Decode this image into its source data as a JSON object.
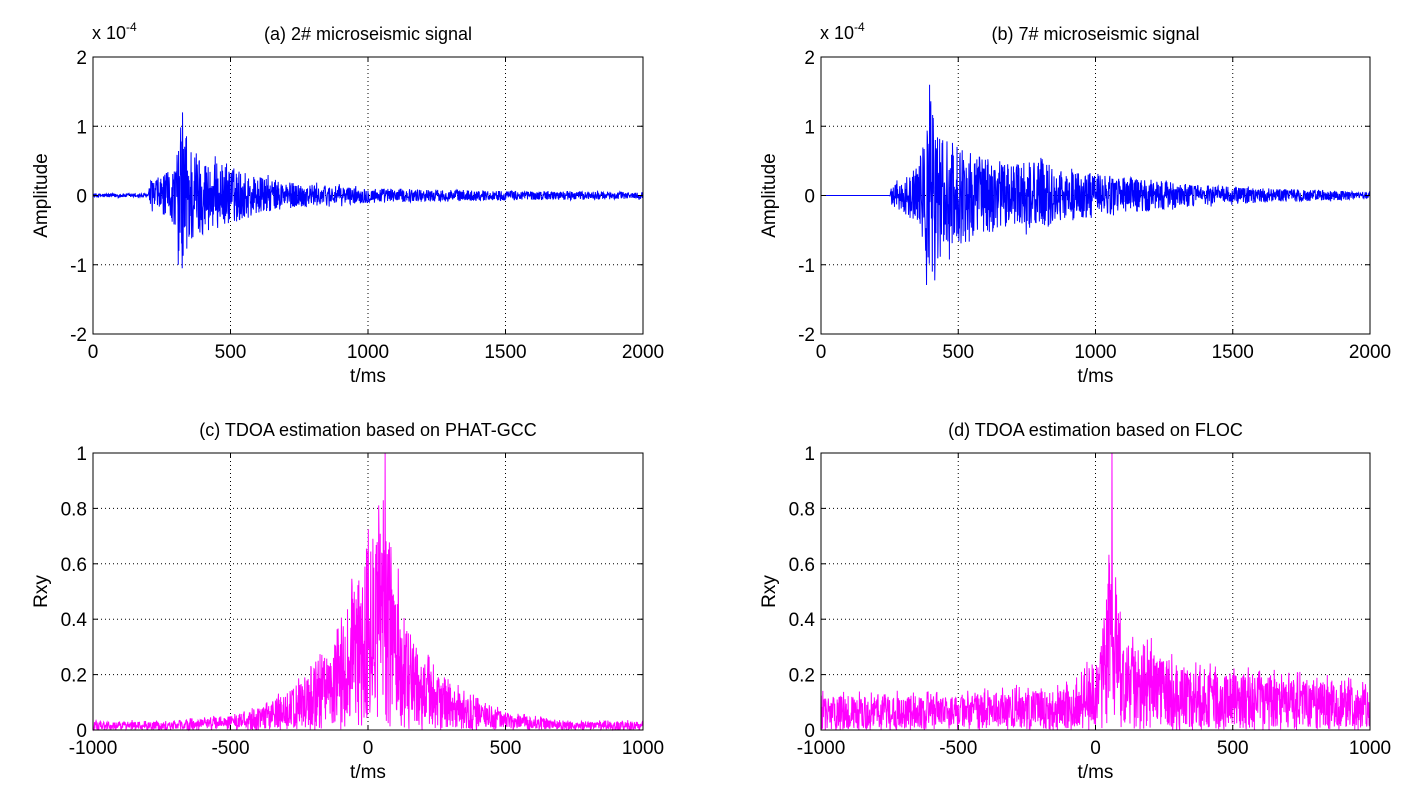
{
  "chart_data": [
    {
      "id": "a",
      "type": "line",
      "title": "(a) 2# microseismic signal",
      "xlabel": "t/ms",
      "ylabel": "Amplitude",
      "axis_exponent": {
        "base": "x 10",
        "exp": "-4"
      },
      "xlim": [
        0,
        2000
      ],
      "ylim": [
        -2,
        2
      ],
      "xticks": [
        0,
        500,
        1000,
        1500,
        2000
      ],
      "yticks": [
        -2,
        -1,
        0,
        1,
        2
      ],
      "grid": true,
      "color": "#0000ff",
      "envelope": {
        "x": [
          0,
          200,
          210,
          260,
          300,
          325,
          350,
          400,
          450,
          500,
          600,
          700,
          800,
          1000,
          1200,
          1500,
          1800,
          2000
        ],
        "y": [
          0.03,
          0.03,
          0.22,
          0.3,
          0.45,
          1.2,
          0.8,
          0.55,
          0.48,
          0.42,
          0.28,
          0.2,
          0.16,
          0.11,
          0.09,
          0.07,
          0.06,
          0.05
        ]
      },
      "peak": {
        "x": 325,
        "y": 1.2
      },
      "trough": {
        "x": 310,
        "y": -1.0
      }
    },
    {
      "id": "b",
      "type": "line",
      "title": "(b) 7# microseismic signal",
      "xlabel": "t/ms",
      "ylabel": "Amplitude",
      "axis_exponent": {
        "base": "x 10",
        "exp": "-4"
      },
      "xlim": [
        0,
        2000
      ],
      "ylim": [
        -2,
        2
      ],
      "xticks": [
        0,
        500,
        1000,
        1500,
        2000
      ],
      "yticks": [
        -2,
        -1,
        0,
        1,
        2
      ],
      "grid": true,
      "color": "#0000ff",
      "envelope": {
        "x": [
          0,
          250,
          255,
          300,
          350,
          380,
          395,
          420,
          450,
          500,
          550,
          600,
          700,
          800,
          900,
          1000,
          1100,
          1300,
          1500,
          1800,
          2000
        ],
        "y": [
          0.0,
          0.0,
          0.15,
          0.25,
          0.4,
          0.9,
          1.5,
          1.0,
          0.8,
          0.75,
          0.7,
          0.55,
          0.45,
          0.5,
          0.35,
          0.32,
          0.28,
          0.18,
          0.12,
          0.08,
          0.05
        ]
      },
      "peak": {
        "x": 395,
        "y": 1.6
      },
      "trough": {
        "x": 405,
        "y": -1.1
      }
    },
    {
      "id": "c",
      "type": "line",
      "title": "(c) TDOA estimation based on PHAT-GCC",
      "xlabel": "t/ms",
      "ylabel": "Rxy",
      "xlim": [
        -1000,
        1000
      ],
      "ylim": [
        0,
        1
      ],
      "xticks": [
        -1000,
        -500,
        0,
        500,
        1000
      ],
      "yticks": [
        0,
        0.2,
        0.4,
        0.6,
        0.8,
        1
      ],
      "grid": true,
      "color": "#ff00ff",
      "envelope": {
        "x": [
          -1000,
          -700,
          -500,
          -400,
          -300,
          -200,
          -100,
          0,
          50,
          100,
          150,
          200,
          300,
          400,
          500,
          700,
          1000
        ],
        "y": [
          0.03,
          0.03,
          0.05,
          0.08,
          0.13,
          0.2,
          0.35,
          0.7,
          0.75,
          0.55,
          0.35,
          0.25,
          0.15,
          0.1,
          0.06,
          0.03,
          0.03
        ]
      },
      "peak": {
        "x": 62,
        "y": 1.0
      }
    },
    {
      "id": "d",
      "type": "line",
      "title": "(d) TDOA estimation based on FLOC",
      "xlabel": "t/ms",
      "ylabel": "Rxy",
      "xlim": [
        -1000,
        1000
      ],
      "ylim": [
        0,
        1
      ],
      "xticks": [
        -1000,
        -500,
        0,
        500,
        1000
      ],
      "yticks": [
        0,
        0.2,
        0.4,
        0.6,
        0.8,
        1
      ],
      "grid": true,
      "color": "#ff00ff",
      "envelope": {
        "x": [
          -1000,
          -500,
          -100,
          0,
          30,
          50,
          80,
          100,
          200,
          300,
          500,
          700,
          1000
        ],
        "y": [
          0.12,
          0.12,
          0.15,
          0.25,
          0.4,
          0.55,
          0.45,
          0.3,
          0.28,
          0.22,
          0.2,
          0.18,
          0.15
        ]
      },
      "peak": {
        "x": 60,
        "y": 1.0
      }
    }
  ]
}
